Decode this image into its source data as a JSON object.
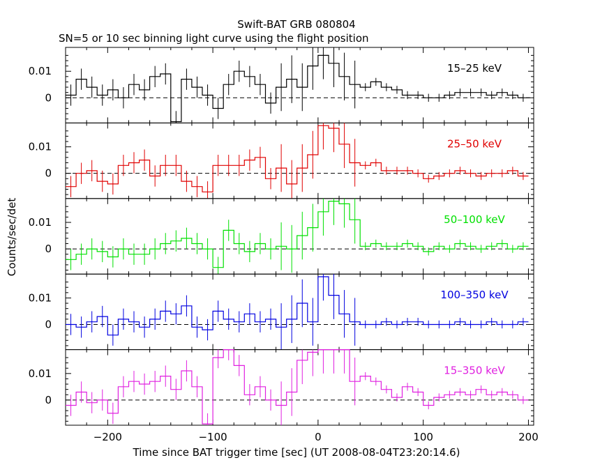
{
  "title": "Swift-BAT GRB 080804",
  "subtitle": "SN=5 or 10 sec binning light curve using the flight position",
  "chart_data": {
    "type": "line",
    "xlabel": "Time since BAT trigger time [sec] (UT 2008-08-04T23:20:14.6)",
    "ylabel": "Counts/sec/det",
    "xlim": [
      -240,
      205
    ],
    "ylim": [
      -0.0095,
      0.019
    ],
    "x_ticks": [
      "−200",
      "−100",
      "0",
      "100",
      "200"
    ],
    "y_ticks": [
      "0",
      "0.01"
    ],
    "baseline": "dashed line at 0",
    "panels": [
      {
        "name": "15–25 keV",
        "color": "#000000",
        "x": [
          -235,
          -225,
          -215,
          -205,
          -195,
          -185,
          -175,
          -165,
          -155,
          -145,
          -135,
          -125,
          -115,
          -105,
          -95,
          -85,
          -75,
          -65,
          -55,
          -45,
          -35,
          -25,
          -15,
          -5,
          5,
          15,
          25,
          35,
          45,
          55,
          65,
          75,
          85,
          95,
          105,
          115,
          125,
          135,
          145,
          155,
          165,
          175,
          185,
          195
        ],
        "y": [
          0.001,
          0.007,
          0.004,
          0.001,
          0.003,
          0.0,
          0.005,
          0.003,
          0.008,
          0.009,
          -0.009,
          0.007,
          0.004,
          0.001,
          -0.004,
          0.005,
          0.01,
          0.008,
          0.005,
          -0.002,
          0.004,
          0.007,
          0.004,
          0.012,
          0.016,
          0.013,
          0.008,
          0.005,
          0.004,
          0.006,
          0.004,
          0.003,
          0.001,
          0.001,
          0.0,
          0.0,
          0.001,
          0.002,
          0.002,
          0.002,
          0.001,
          0.002,
          0.001,
          0.0
        ]
      },
      {
        "name": "25–50 keV",
        "color": "#e00000",
        "x": [
          -235,
          -225,
          -215,
          -205,
          -195,
          -185,
          -175,
          -165,
          -155,
          -145,
          -135,
          -125,
          -115,
          -105,
          -95,
          -85,
          -75,
          -65,
          -55,
          -45,
          -35,
          -25,
          -15,
          -5,
          5,
          15,
          25,
          35,
          45,
          55,
          65,
          75,
          85,
          95,
          105,
          115,
          125,
          135,
          145,
          155,
          165,
          175,
          185,
          195
        ],
        "y": [
          -0.005,
          0.0,
          0.001,
          -0.003,
          -0.004,
          0.003,
          0.004,
          0.005,
          -0.001,
          0.003,
          0.003,
          -0.003,
          -0.005,
          -0.007,
          0.003,
          0.003,
          0.003,
          0.005,
          0.006,
          -0.002,
          0.002,
          -0.004,
          0.002,
          0.007,
          0.018,
          0.017,
          0.011,
          0.004,
          0.003,
          0.004,
          0.001,
          0.001,
          0.001,
          0.0,
          -0.002,
          -0.001,
          0.0,
          0.001,
          0.0,
          -0.001,
          0.0,
          0.0,
          0.001,
          -0.001
        ]
      },
      {
        "name": "50–100 keV",
        "color": "#00e000",
        "x": [
          -235,
          -225,
          -215,
          -205,
          -195,
          -185,
          -175,
          -165,
          -155,
          -145,
          -135,
          -125,
          -115,
          -105,
          -95,
          -85,
          -75,
          -65,
          -55,
          -45,
          -35,
          -25,
          -15,
          -5,
          5,
          15,
          25,
          35,
          45,
          55,
          65,
          75,
          85,
          95,
          105,
          115,
          125,
          135,
          145,
          155,
          165,
          175,
          185,
          195
        ],
        "y": [
          -0.004,
          -0.002,
          0.0,
          -0.001,
          -0.003,
          0.0,
          -0.002,
          -0.002,
          0.0,
          0.002,
          0.003,
          0.004,
          0.002,
          0.0,
          -0.007,
          0.007,
          0.002,
          -0.001,
          0.002,
          0.0,
          0.001,
          0.0,
          0.005,
          0.008,
          0.014,
          0.018,
          0.017,
          0.011,
          0.001,
          0.002,
          0.001,
          0.001,
          0.002,
          0.001,
          -0.001,
          0.001,
          0.0,
          0.002,
          0.001,
          0.0,
          0.001,
          0.002,
          0.0,
          0.001
        ]
      },
      {
        "name": "100–350 keV",
        "color": "#0000e0",
        "x": [
          -235,
          -225,
          -215,
          -205,
          -195,
          -185,
          -175,
          -165,
          -155,
          -145,
          -135,
          -125,
          -115,
          -105,
          -95,
          -85,
          -75,
          -65,
          -55,
          -45,
          -35,
          -25,
          -15,
          -5,
          5,
          15,
          25,
          35,
          45,
          55,
          65,
          75,
          85,
          95,
          105,
          115,
          125,
          135,
          145,
          155,
          165,
          175,
          185,
          195
        ],
        "y": [
          0.0,
          -0.001,
          0.001,
          0.003,
          -0.004,
          0.002,
          0.001,
          -0.001,
          0.002,
          0.005,
          0.004,
          0.007,
          -0.001,
          -0.002,
          0.005,
          0.002,
          0.001,
          0.004,
          0.001,
          0.002,
          -0.001,
          0.002,
          0.008,
          0.001,
          0.018,
          0.011,
          0.004,
          0.001,
          0.0,
          0.0,
          0.001,
          0.0,
          0.001,
          0.001,
          0.0,
          0.0,
          0.0,
          0.001,
          0.0,
          0.0,
          0.001,
          0.0,
          0.0,
          0.001
        ]
      },
      {
        "name": "15–350 keV",
        "color": "#e020e0",
        "x": [
          -235,
          -225,
          -215,
          -205,
          -195,
          -185,
          -175,
          -165,
          -155,
          -145,
          -135,
          -125,
          -115,
          -105,
          -95,
          -85,
          -75,
          -65,
          -55,
          -45,
          -35,
          -25,
          -15,
          -5,
          5,
          15,
          25,
          35,
          45,
          55,
          65,
          75,
          85,
          95,
          105,
          115,
          125,
          135,
          145,
          155,
          165,
          175,
          185,
          195
        ],
        "y": [
          -0.002,
          0.003,
          -0.001,
          0.0,
          -0.005,
          0.005,
          0.007,
          0.006,
          0.007,
          0.009,
          0.004,
          0.011,
          0.005,
          -0.009,
          0.016,
          0.019,
          0.013,
          0.002,
          0.005,
          0.0,
          -0.002,
          0.003,
          0.015,
          0.018,
          0.019,
          0.019,
          0.019,
          0.007,
          0.009,
          0.007,
          0.004,
          0.001,
          0.005,
          0.003,
          -0.002,
          0.001,
          0.002,
          0.003,
          0.002,
          0.004,
          0.002,
          0.003,
          0.002,
          0.0
        ]
      }
    ]
  }
}
